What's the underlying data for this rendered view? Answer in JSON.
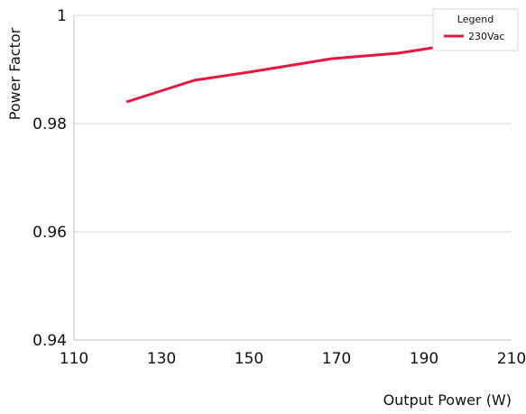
{
  "chart_data": {
    "type": "line",
    "xlabel": "Output Power (W)",
    "ylabel": "Power Factor",
    "xlim": [
      110,
      210
    ],
    "ylim": [
      0.94,
      1.0
    ],
    "x_ticks": [
      "110",
      "130",
      "150",
      "170",
      "190",
      "210"
    ],
    "y_ticks": [
      "0.94",
      "0.96",
      "0.98",
      "1"
    ],
    "grid": "horizontal",
    "legend": {
      "title": "Legend",
      "position": "top-right"
    },
    "series": [
      {
        "name": "230Vac",
        "color": "#e8173f",
        "x": [
          122,
          137.5,
          150,
          169,
          184,
          192,
          210
        ],
        "y": [
          0.984,
          0.988,
          0.9895,
          0.992,
          0.993,
          0.994,
          0.994
        ]
      }
    ]
  }
}
